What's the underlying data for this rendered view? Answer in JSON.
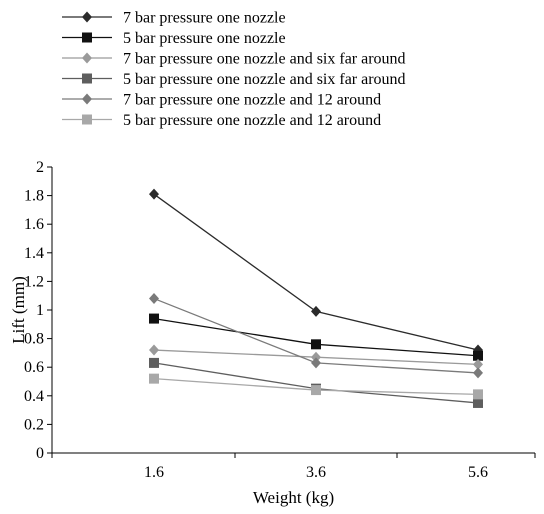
{
  "chart_data": {
    "type": "line",
    "title": "",
    "xlabel": "Weight (kg)",
    "ylabel": "Lift (mm)",
    "categories": [
      "1.6",
      "3.6",
      "5.6"
    ],
    "ylim": [
      0,
      2
    ],
    "yticks": [
      "0",
      "0.2",
      "0.4",
      "0.6",
      "0.8",
      "1",
      "1.2",
      "1.4",
      "1.6",
      "1.8",
      "2"
    ],
    "grid": false,
    "legend_position": "top",
    "series": [
      {
        "name": "7 bar pressure one nozzle",
        "marker": "diamond",
        "color": "#2b2b2b",
        "values": [
          1.81,
          0.99,
          0.72
        ]
      },
      {
        "name": "5 bar pressure one nozzle",
        "marker": "square",
        "color": "#111111",
        "values": [
          0.94,
          0.76,
          0.68
        ]
      },
      {
        "name": "7 bar pressure one nozzle and six far around",
        "marker": "diamond",
        "color": "#9a9a9a",
        "values": [
          0.72,
          0.67,
          0.62
        ]
      },
      {
        "name": "5 bar pressure one nozzle and six far around",
        "marker": "square",
        "color": "#5e5e5e",
        "values": [
          0.63,
          0.45,
          0.35
        ]
      },
      {
        "name": "7 bar pressure one nozzle and 12 around",
        "marker": "diamond",
        "color": "#7a7a7a",
        "values": [
          1.08,
          0.63,
          0.56
        ]
      },
      {
        "name": "5 bar pressure one nozzle and 12 around",
        "marker": "square",
        "color": "#a8a8a8",
        "values": [
          0.52,
          0.44,
          0.41
        ]
      }
    ]
  }
}
